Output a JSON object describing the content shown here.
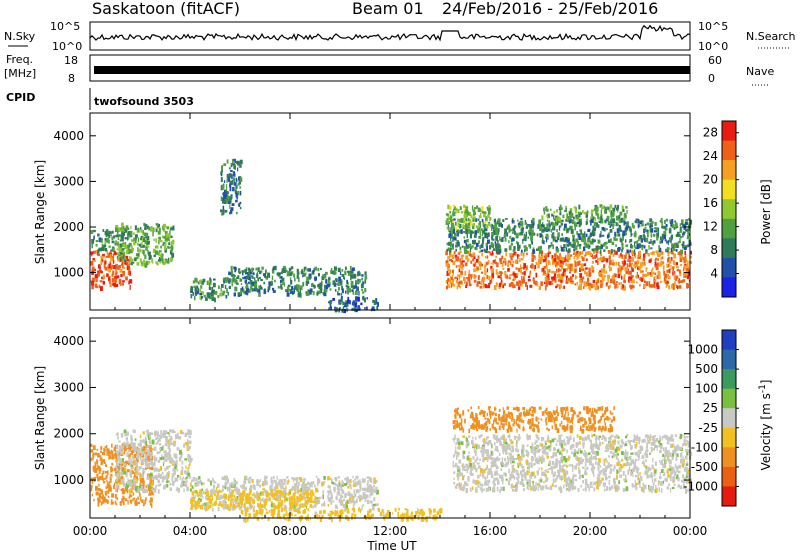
{
  "header": {
    "station": "Saskatoon (fitACF)",
    "beam": "Beam 01",
    "date_range": "24/Feb/2016 - 25/Feb/2016"
  },
  "top_panels": {
    "nsky_label": "N.Sky",
    "nsky_ticks": [
      "10^5",
      "10^0"
    ],
    "nsearch_label": "N.Search",
    "nsearch_ticks": [
      "10^5",
      "10^0"
    ],
    "freq_label": "Freq.",
    "freq_unit": "[MHz]",
    "freq_ticks": [
      "18",
      "8"
    ],
    "nave_label": "Nave",
    "nave_ticks": [
      "60",
      "0"
    ],
    "cpid_label": "CPID",
    "cpid_value": "twofsound 3503"
  },
  "chart_data": [
    {
      "type": "heatmap",
      "panel": "power",
      "xlabel": "",
      "ylabel": "Slant Range [km]",
      "ylim": [
        180,
        4500
      ],
      "x_ticks": [
        "00:00",
        "04:00",
        "08:00",
        "12:00",
        "16:00",
        "20:00",
        "00:00"
      ],
      "y_ticks": [
        1000,
        2000,
        3000,
        4000
      ],
      "colorbar": {
        "label": "Power [dB]",
        "ticks": [
          4,
          8,
          12,
          16,
          20,
          24,
          28
        ],
        "range": [
          0,
          30
        ],
        "colors": [
          "#1a22e6",
          "#2050a8",
          "#2f7a5a",
          "#50a040",
          "#90c830",
          "#f2e020",
          "#f4a020",
          "#f06018",
          "#e81c10"
        ]
      },
      "regions": [
        {
          "t": [
            0.0,
            1.6
          ],
          "r": [
            700,
            1500
          ],
          "value": 26
        },
        {
          "t": [
            0.0,
            1.6
          ],
          "r": [
            1500,
            2000
          ],
          "value": 10
        },
        {
          "t": [
            1.0,
            3.3
          ],
          "r": [
            1200,
            2100
          ],
          "value": 12
        },
        {
          "t": [
            4.0,
            5.5
          ],
          "r": [
            450,
            900
          ],
          "value": 10
        },
        {
          "t": [
            5.5,
            11.0
          ],
          "r": [
            550,
            1150
          ],
          "value": 9
        },
        {
          "t": [
            5.2,
            6.0
          ],
          "r": [
            2300,
            3500
          ],
          "value": 8
        },
        {
          "t": [
            9.5,
            11.5
          ],
          "r": [
            200,
            500
          ],
          "value": 6
        },
        {
          "t": [
            14.2,
            24.0
          ],
          "r": [
            700,
            1500
          ],
          "value": 24
        },
        {
          "t": [
            14.2,
            24.0
          ],
          "r": [
            1500,
            2200
          ],
          "value": 9
        },
        {
          "t": [
            14.2,
            16.0
          ],
          "r": [
            2000,
            2500
          ],
          "value": 14
        },
        {
          "t": [
            18.0,
            21.5
          ],
          "r": [
            2200,
            2500
          ],
          "value": 12
        }
      ]
    },
    {
      "type": "heatmap",
      "panel": "velocity",
      "xlabel": "Time UT",
      "ylabel": "Slant Range [km]",
      "ylim": [
        180,
        4500
      ],
      "x_ticks": [
        "00:00",
        "04:00",
        "08:00",
        "12:00",
        "16:00",
        "20:00",
        "00:00"
      ],
      "y_ticks": [
        1000,
        2000,
        3000,
        4000
      ],
      "colorbar": {
        "label": "Velocity [m s^-1]",
        "ticks": [
          1000,
          500,
          100,
          25,
          -25,
          -100,
          -500,
          -1000
        ],
        "colors": [
          "#1f3fc0",
          "#2a6aa8",
          "#3a9a60",
          "#7ac040",
          "#c8c8c4",
          "#f2c020",
          "#f09020",
          "#ec6014",
          "#e41c10"
        ]
      },
      "regions": [
        {
          "t": [
            0.0,
            2.5
          ],
          "r": [
            500,
            1800
          ],
          "value": -300
        },
        {
          "t": [
            1.0,
            4.0
          ],
          "r": [
            800,
            2100
          ],
          "value": 0
        },
        {
          "t": [
            4.0,
            11.5
          ],
          "r": [
            400,
            1100
          ],
          "value": 0
        },
        {
          "t": [
            4.0,
            9.0
          ],
          "r": [
            450,
            800
          ],
          "value": -60
        },
        {
          "t": [
            6.0,
            14.0
          ],
          "r": [
            180,
            400
          ],
          "value": -50
        },
        {
          "t": [
            14.5,
            24.0
          ],
          "r": [
            800,
            2000
          ],
          "value": 0
        },
        {
          "t": [
            14.5,
            21.0
          ],
          "r": [
            2100,
            2600
          ],
          "value": -300
        }
      ]
    }
  ]
}
